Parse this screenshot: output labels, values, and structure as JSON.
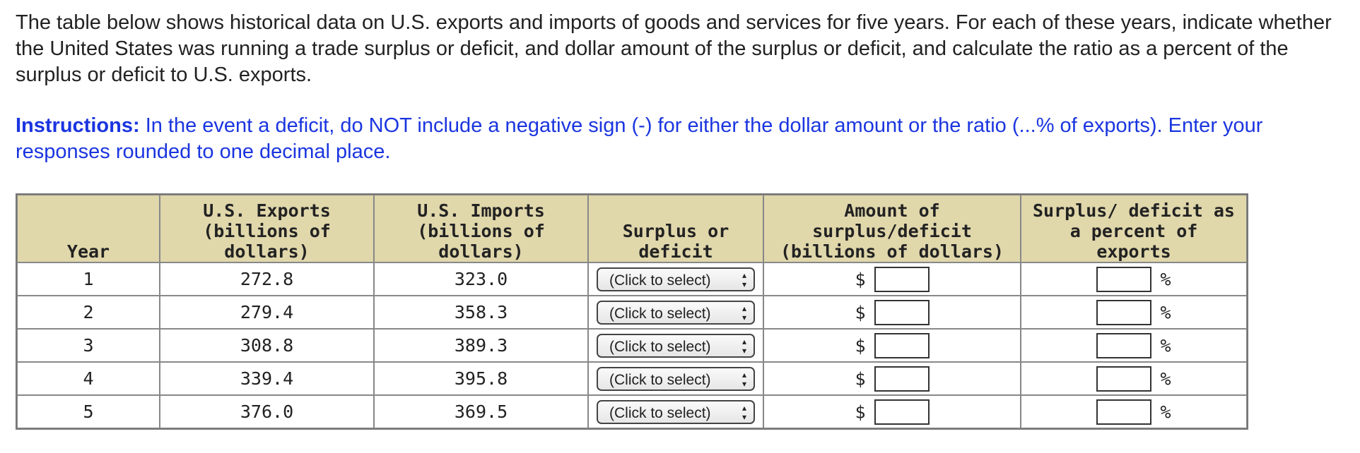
{
  "intro": "The table below shows historical data on U.S. exports and imports of goods and services for five years. For each of these years, indicate whether the United States was running a trade surplus or deficit, and dollar amount of the surplus or deficit, and calculate the ratio as a percent of the surplus or deficit to U.S. exports.",
  "instructions": {
    "label": "Instructions:",
    "text": "In the event a deficit, do NOT include a negative sign (-) for either the dollar amount or the ratio (...% of exports). Enter your responses rounded to one decimal place."
  },
  "table": {
    "headers": [
      [
        "Year"
      ],
      [
        "U.S. Exports",
        "(billions of",
        "dollars)"
      ],
      [
        "U.S. Imports",
        "(billions of",
        "dollars)"
      ],
      [
        "Surplus or",
        "deficit"
      ],
      [
        "Amount of",
        "surplus/deficit",
        "(billions of dollars)"
      ],
      [
        "Surplus/ deficit as",
        "a percent of",
        "exports"
      ]
    ],
    "rows": [
      [
        "1",
        "272.8",
        "323.0"
      ],
      [
        "2",
        "279.4",
        "358.3"
      ],
      [
        "3",
        "308.8",
        "389.3"
      ],
      [
        "4",
        "339.4",
        "395.8"
      ],
      [
        "5",
        "376.0",
        "369.5"
      ]
    ],
    "select_placeholder": "(Click to select)",
    "currency_symbol": "$",
    "percent_symbol": "%"
  }
}
